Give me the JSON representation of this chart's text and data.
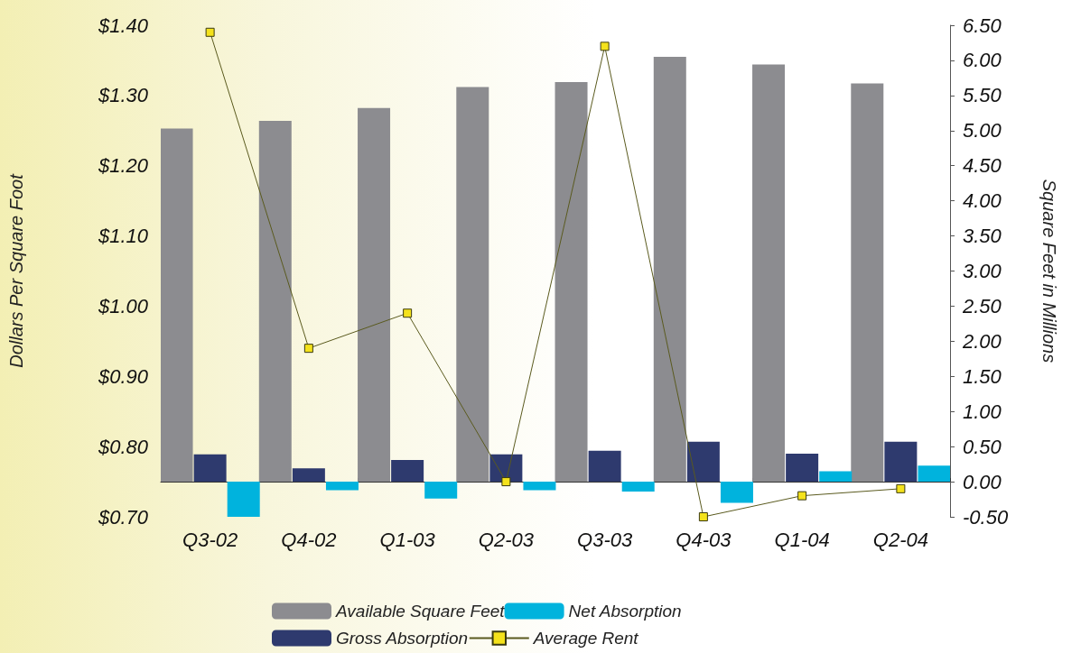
{
  "chart_data": {
    "type": "bar",
    "ylabel": "Dollars Per Square Foot",
    "y2label": "Square Feet in Millions",
    "categories": [
      "Q3-02",
      "Q4-02",
      "Q1-03",
      "Q2-03",
      "Q3-03",
      "Q4-03",
      "Q1-04",
      "Q2-04"
    ],
    "series": [
      {
        "name": "Available Square Feet",
        "axis": "y2",
        "color": "#8c8c90",
        "values": [
          5.03,
          5.14,
          5.32,
          5.62,
          5.69,
          6.05,
          5.94,
          5.67
        ]
      },
      {
        "name": "Gross Absorption",
        "axis": "y2",
        "color": "#2e3a6e",
        "values": [
          0.39,
          0.19,
          0.31,
          0.39,
          0.44,
          0.57,
          0.4,
          0.57
        ]
      },
      {
        "name": "Net Absorption",
        "axis": "y2",
        "color": "#00b3dd",
        "values": [
          -0.5,
          -0.12,
          -0.24,
          -0.12,
          -0.14,
          -0.3,
          0.15,
          0.23
        ]
      },
      {
        "name": "Average Rent",
        "type": "line",
        "axis": "y",
        "color": "#5a5a1e",
        "marker": "square",
        "values": [
          1.39,
          0.94,
          0.99,
          0.75,
          1.37,
          0.7,
          0.73,
          0.74
        ]
      }
    ],
    "ylim": [
      0.7,
      1.4
    ],
    "yticks": [
      {
        "value": 0.7,
        "label": "$0.70"
      },
      {
        "value": 0.8,
        "label": "$0.80"
      },
      {
        "value": 0.9,
        "label": "$0.90"
      },
      {
        "value": 1.0,
        "label": "$1.00"
      },
      {
        "value": 1.1,
        "label": "$1.10"
      },
      {
        "value": 1.2,
        "label": "$1.20"
      },
      {
        "value": 1.3,
        "label": "$1.30"
      },
      {
        "value": 1.4,
        "label": "$1.40"
      }
    ],
    "y2lim": [
      -0.5,
      6.5
    ],
    "y2ticks": [
      {
        "value": -0.5,
        "label": "-0.50"
      },
      {
        "value": 0,
        "label": "0.00"
      },
      {
        "value": 0.5,
        "label": "0.50"
      },
      {
        "value": 1,
        "label": "1.00"
      },
      {
        "value": 1.5,
        "label": "1.50"
      },
      {
        "value": 2,
        "label": "2.00"
      },
      {
        "value": 2.5,
        "label": "2.50"
      },
      {
        "value": 3,
        "label": "3.00"
      },
      {
        "value": 3.5,
        "label": "3.50"
      },
      {
        "value": 4,
        "label": "4.00"
      },
      {
        "value": 4.5,
        "label": "4.50"
      },
      {
        "value": 5,
        "label": "5.00"
      },
      {
        "value": 5.5,
        "label": "5.50"
      },
      {
        "value": 6,
        "label": "6.00"
      },
      {
        "value": 6.5,
        "label": "6.50"
      }
    ],
    "grid": false,
    "legend": "bottom"
  }
}
